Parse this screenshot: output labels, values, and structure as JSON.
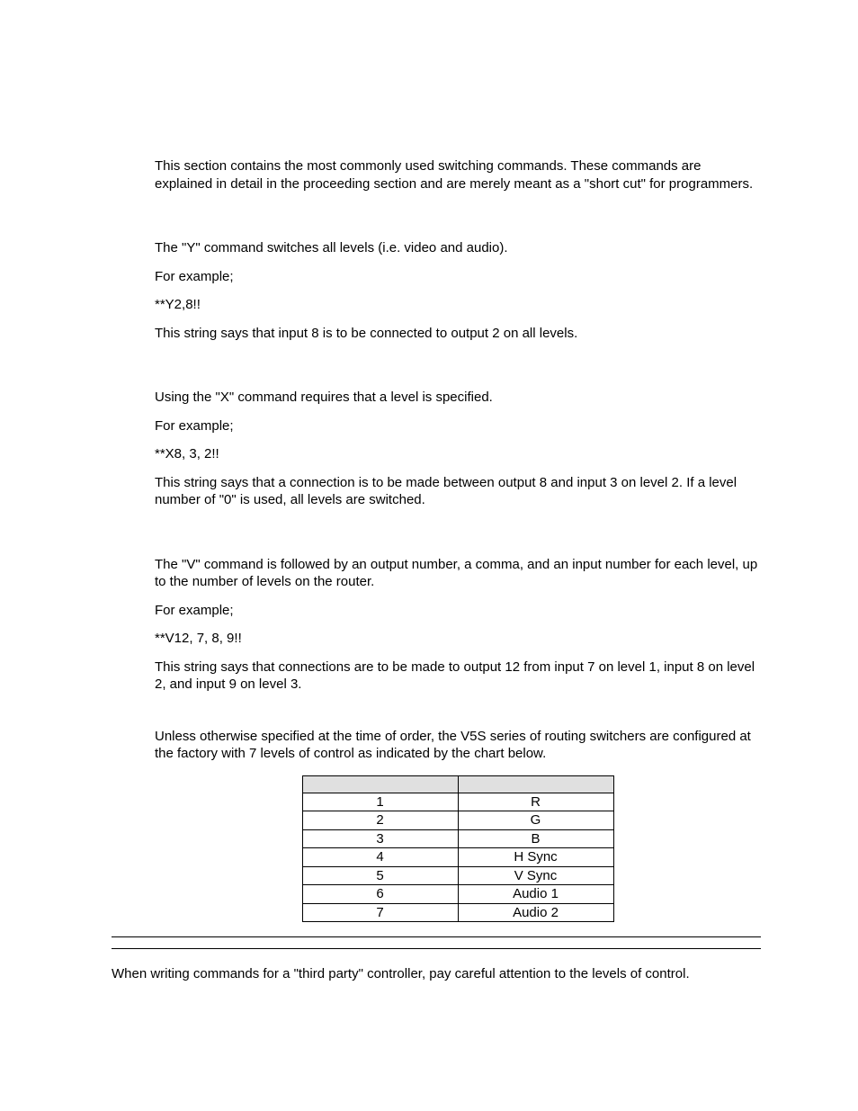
{
  "intro": "This section contains the most commonly used switching commands. These commands are explained in detail in the proceeding section and are merely meant as a \"short cut\" for programmers.",
  "y_command": {
    "desc": "The \"Y\" command switches all levels (i.e. video and audio).",
    "example_label": "For example;",
    "example": "**Y2,8!!",
    "explanation": "This string says that input 8 is to be connected to output 2 on all levels."
  },
  "x_command": {
    "desc": "Using the \"X\" command requires that a level is specified.",
    "example_label": "For example;",
    "example": "**X8, 3, 2!!",
    "explanation": "This string says that a connection is to be made between output 8 and input 3 on level 2. If a level number of \"0\" is used, all levels are switched."
  },
  "v_command": {
    "desc": "The \"V\" command is followed by an output number, a comma, and an input number for each level, up to the number of levels on the router.",
    "example_label": "For example;",
    "example": "**V12, 7, 8, 9!!",
    "explanation": "This string says that connections are to be made to output 12 from input 7 on level 1, input 8 on level 2, and input 9 on level 3."
  },
  "levels_intro": "Unless otherwise specified at the time of order, the V5S series of routing switchers are configured at the factory with 7 levels of control as indicated by the chart below.",
  "levels_table": {
    "columns": [
      "",
      ""
    ],
    "rows": [
      [
        "1",
        "R"
      ],
      [
        "2",
        "G"
      ],
      [
        "3",
        "B"
      ],
      [
        "4",
        "H Sync"
      ],
      [
        "5",
        "V Sync"
      ],
      [
        "6",
        "Audio 1"
      ],
      [
        "7",
        "Audio 2"
      ]
    ]
  },
  "final_note": "When writing commands for a \"third party\" controller, pay careful attention to the levels of control."
}
